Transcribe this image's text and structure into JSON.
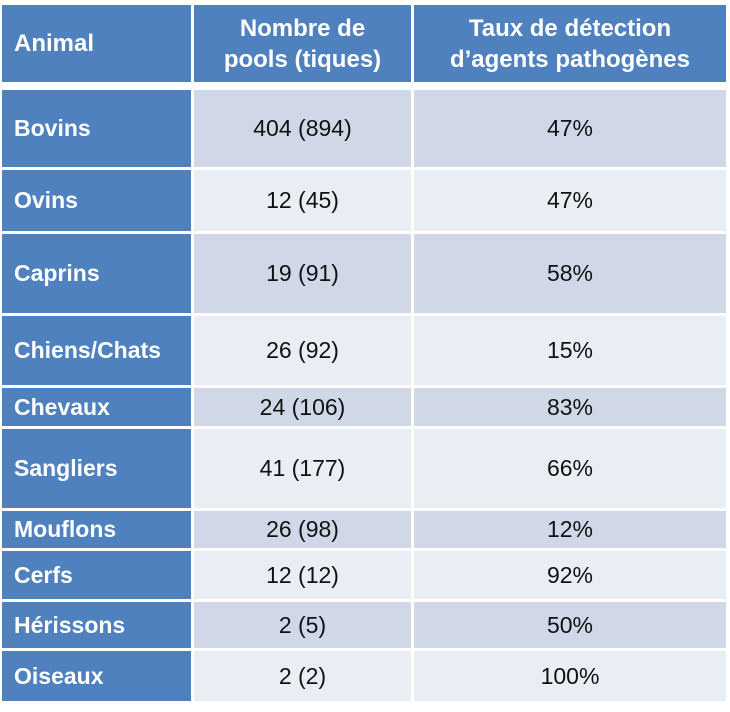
{
  "table": {
    "headers": {
      "animal": "Animal",
      "pools_line1": "Nombre de",
      "pools_line2": "pools (tiques)",
      "rate_line1": "Taux de détection",
      "rate_line2": "d’agents pathogènes"
    },
    "rows": [
      {
        "animal": "Bovins",
        "pools": "404 (894)",
        "rate": "47%"
      },
      {
        "animal": "Ovins",
        "pools": "12 (45)",
        "rate": "47%"
      },
      {
        "animal": "Caprins",
        "pools": "19 (91)",
        "rate": "58%"
      },
      {
        "animal": "Chiens/Chats",
        "pools": "26 (92)",
        "rate": "15%"
      },
      {
        "animal": "Chevaux",
        "pools": "24 (106)",
        "rate": "83%"
      },
      {
        "animal": "Sangliers",
        "pools": "41 (177)",
        "rate": "66%"
      },
      {
        "animal": "Mouflons",
        "pools": "26 (98)",
        "rate": "12%"
      },
      {
        "animal": "Cerfs",
        "pools": "12 (12)",
        "rate": "92%"
      },
      {
        "animal": "Hérissons",
        "pools": "2 (5)",
        "rate": "50%"
      },
      {
        "animal": "Oiseaux",
        "pools": "2 (2)",
        "rate": "100%"
      }
    ]
  }
}
